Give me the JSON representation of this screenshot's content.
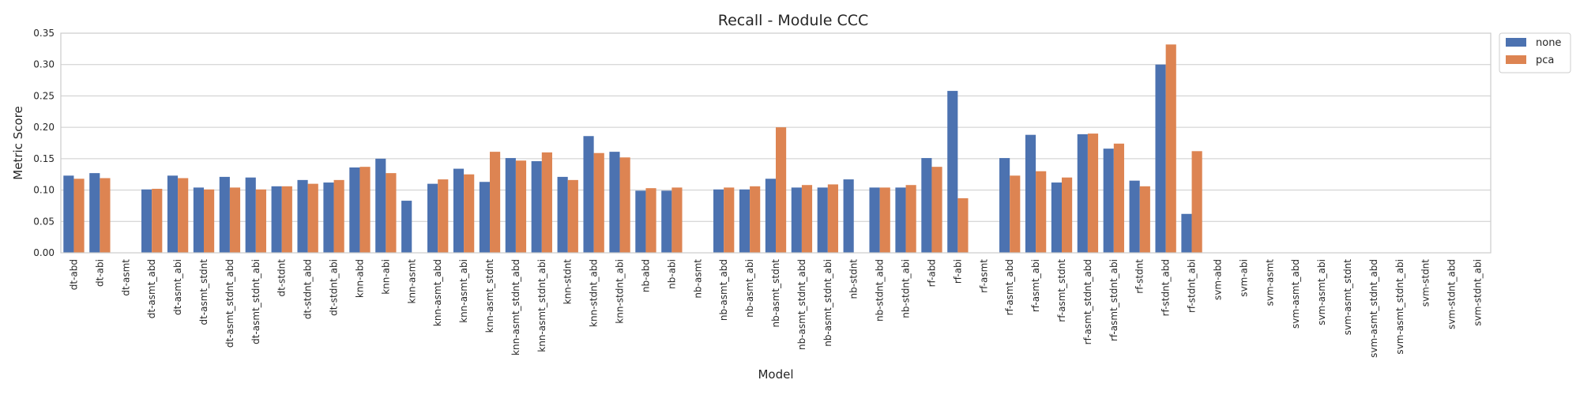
{
  "chart_data": {
    "type": "bar",
    "title": "Recall - Module CCC",
    "xlabel": "Model",
    "ylabel": "Metric Score",
    "ylim": [
      0,
      0.35
    ],
    "yticks": [
      "0.00",
      "0.05",
      "0.10",
      "0.15",
      "0.20",
      "0.25",
      "0.30",
      "0.35"
    ],
    "grid": true,
    "legend_position": "outside top-right",
    "categories": [
      "dt-abd",
      "dt-abi",
      "dt-asmt",
      "dt-asmt_abd",
      "dt-asmt_abi",
      "dt-asmt_stdnt",
      "dt-asmt_stdnt_abd",
      "dt-asmt_stdnt_abi",
      "dt-stdnt",
      "dt-stdnt_abd",
      "dt-stdnt_abi",
      "knn-abd",
      "knn-abi",
      "knn-asmt",
      "knn-asmt_abd",
      "knn-asmt_abi",
      "knn-asmt_stdnt",
      "knn-asmt_stdnt_abd",
      "knn-asmt_stdnt_abi",
      "knn-stdnt",
      "knn-stdnt_abd",
      "knn-stdnt_abi",
      "nb-abd",
      "nb-abi",
      "nb-asmt",
      "nb-asmt_abd",
      "nb-asmt_abi",
      "nb-asmt_stdnt",
      "nb-asmt_stdnt_abd",
      "nb-asmt_stdnt_abi",
      "nb-stdnt",
      "nb-stdnt_abd",
      "nb-stdnt_abi",
      "rf-abd",
      "rf-abi",
      "rf-asmt",
      "rf-asmt_abd",
      "rf-asmt_abi",
      "rf-asmt_stdnt",
      "rf-asmt_stdnt_abd",
      "rf-asmt_stdnt_abi",
      "rf-stdnt",
      "rf-stdnt_abd",
      "rf-stdnt_abi",
      "svm-abd",
      "svm-abi",
      "svm-asmt",
      "svm-asmt_abd",
      "svm-asmt_abi",
      "svm-asmt_stdnt",
      "svm-asmt_stdnt_abd",
      "svm-asmt_stdnt_abi",
      "svm-stdnt",
      "svm-stdnt_abd",
      "svm-stdnt_abi"
    ],
    "series": [
      {
        "name": "none",
        "color": "#4c72b0",
        "values": [
          0.123,
          0.127,
          0,
          0.101,
          0.123,
          0.104,
          0.121,
          0.12,
          0.106,
          0.116,
          0.112,
          0.136,
          0.15,
          0.083,
          0.11,
          0.134,
          0.113,
          0.151,
          0.146,
          0.121,
          0.186,
          0.161,
          0.099,
          0.099,
          0,
          0.101,
          0.101,
          0.118,
          0.104,
          0.104,
          0.117,
          0.104,
          0.104,
          0.151,
          0.258,
          0,
          0.151,
          0.188,
          0.112,
          0.189,
          0.166,
          0.115,
          0.3,
          0.062,
          0,
          0,
          0,
          0,
          0,
          0,
          0,
          0,
          0,
          0,
          0
        ]
      },
      {
        "name": "pca",
        "color": "#dd8452",
        "values": [
          0.118,
          0.119,
          0,
          0.102,
          0.119,
          0.101,
          0.104,
          0.101,
          0.106,
          0.11,
          0.116,
          0.137,
          0.127,
          0,
          0.117,
          0.125,
          0.161,
          0.147,
          0.16,
          0.116,
          0.159,
          0.152,
          0.103,
          0.104,
          0,
          0.104,
          0.106,
          0.2,
          0.108,
          0.109,
          0,
          0.104,
          0.108,
          0.137,
          0.087,
          0,
          0.123,
          0.13,
          0.12,
          0.19,
          0.174,
          0.106,
          0.332,
          0.162,
          0,
          0,
          0,
          0,
          0,
          0,
          0,
          0,
          0,
          0,
          0
        ]
      }
    ]
  }
}
